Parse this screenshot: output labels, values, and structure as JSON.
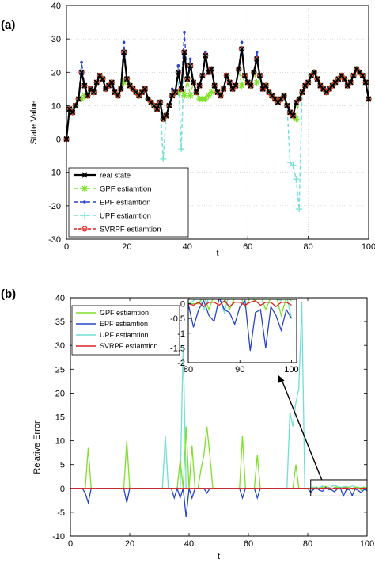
{
  "chart_data": [
    {
      "type": "line",
      "panel_label": "(a)",
      "xlabel": "t",
      "ylabel": "State Value",
      "xlim": [
        0,
        100
      ],
      "ylim": [
        -30,
        40
      ],
      "xticks": [
        "0",
        "20",
        "40",
        "60",
        "80",
        "100"
      ],
      "yticks": [
        "-30",
        "-20",
        "-10",
        "0",
        "10",
        "20",
        "30",
        "40"
      ],
      "grid": true,
      "legend_position": "bottom-left",
      "legend": [
        "real state",
        "GPF estiamtion",
        "EPF estiamtion",
        "UPF estiamtion",
        "SVRPF estiamtion"
      ],
      "colors": {
        "real": "#000000",
        "gpf": "#7fe02a",
        "epf": "#2545c8",
        "upf": "#6ee0d4",
        "svrpf": "#e02020"
      },
      "x": [
        0,
        1,
        2,
        3,
        4,
        5,
        6,
        7,
        8,
        9,
        10,
        11,
        12,
        13,
        14,
        15,
        16,
        17,
        18,
        19,
        20,
        21,
        22,
        23,
        24,
        25,
        26,
        27,
        28,
        29,
        30,
        31,
        32,
        33,
        34,
        35,
        36,
        37,
        38,
        39,
        40,
        41,
        42,
        43,
        44,
        45,
        46,
        47,
        48,
        49,
        50,
        51,
        52,
        53,
        54,
        55,
        56,
        57,
        58,
        59,
        60,
        61,
        62,
        63,
        64,
        65,
        66,
        67,
        68,
        69,
        70,
        71,
        72,
        73,
        74,
        75,
        76,
        77,
        78,
        79,
        80,
        81,
        82,
        83,
        84,
        85,
        86,
        87,
        88,
        89,
        90,
        91,
        92,
        93,
        94,
        95,
        96,
        97,
        98,
        99,
        100
      ],
      "series": [
        {
          "key": "real",
          "values": [
            0,
            9,
            8,
            10,
            12,
            20,
            16,
            13,
            15,
            14,
            17,
            19,
            18,
            15,
            16,
            17,
            14,
            13,
            15,
            26,
            18,
            16,
            15,
            14,
            13,
            14,
            15,
            12,
            11,
            10,
            9,
            11,
            6,
            7,
            10,
            13,
            14,
            20,
            15,
            26,
            18,
            22,
            17,
            14,
            16,
            19,
            25,
            20,
            21,
            16,
            14,
            13,
            15,
            19,
            17,
            15,
            16,
            21,
            27,
            19,
            17,
            16,
            20,
            24,
            19,
            15,
            16,
            14,
            13,
            12,
            11,
            12,
            13,
            10,
            8,
            7,
            11,
            12,
            14,
            16,
            17,
            19,
            20,
            18,
            16,
            15,
            14,
            15,
            16,
            17,
            18,
            19,
            18,
            16,
            17,
            19,
            21,
            20,
            19,
            17,
            12
          ]
        },
        {
          "key": "gpf",
          "values": [
            0,
            9,
            8,
            10,
            12,
            12,
            13,
            13,
            15,
            14,
            17,
            19,
            18,
            15,
            16,
            17,
            14,
            13,
            15,
            17,
            18,
            16,
            15,
            14,
            13,
            14,
            15,
            12,
            11,
            10,
            9,
            11,
            6,
            7,
            10,
            13,
            14,
            14,
            15,
            13,
            18,
            13,
            17,
            14,
            12,
            12,
            12,
            13,
            14,
            16,
            14,
            13,
            15,
            19,
            17,
            15,
            16,
            21,
            16,
            19,
            17,
            16,
            20,
            17,
            19,
            15,
            16,
            14,
            13,
            12,
            11,
            12,
            13,
            10,
            8,
            7,
            6,
            12,
            14,
            16,
            17,
            19,
            20,
            18,
            16,
            15,
            14,
            15,
            16,
            17,
            18,
            19,
            18,
            16,
            17,
            19,
            21,
            20,
            19,
            17,
            12
          ]
        },
        {
          "key": "epf",
          "values": [
            0,
            9,
            8,
            10,
            12,
            23,
            16,
            13,
            15,
            14,
            17,
            19,
            18,
            15,
            16,
            17,
            14,
            13,
            15,
            29,
            18,
            16,
            15,
            14,
            13,
            14,
            15,
            12,
            11,
            10,
            9,
            11,
            6,
            7,
            10,
            15,
            14,
            22,
            15,
            32,
            18,
            24,
            17,
            14,
            16,
            19,
            26,
            20,
            21,
            16,
            14,
            13,
            15,
            19,
            17,
            15,
            16,
            21,
            29,
            19,
            17,
            16,
            20,
            26,
            19,
            15,
            16,
            14,
            13,
            12,
            11,
            12,
            13,
            10,
            8,
            7,
            11,
            12,
            14,
            16,
            17,
            19,
            20,
            18,
            16,
            15,
            14,
            15,
            16,
            17,
            18,
            19,
            18,
            16,
            17,
            19,
            21,
            20,
            19,
            17,
            12
          ]
        },
        {
          "key": "upf",
          "values": [
            0,
            9,
            8,
            10,
            12,
            20,
            16,
            13,
            15,
            14,
            17,
            19,
            18,
            15,
            16,
            17,
            14,
            13,
            15,
            26,
            18,
            16,
            15,
            14,
            13,
            14,
            15,
            12,
            11,
            10,
            9,
            11,
            -6,
            7,
            10,
            13,
            14,
            20,
            -3,
            26,
            18,
            22,
            17,
            14,
            16,
            19,
            25,
            20,
            21,
            16,
            14,
            13,
            15,
            19,
            17,
            15,
            16,
            21,
            27,
            19,
            17,
            16,
            20,
            24,
            19,
            15,
            16,
            14,
            13,
            12,
            11,
            12,
            13,
            10,
            -7,
            -8,
            -12,
            -21,
            14,
            16,
            17,
            19,
            20,
            18,
            16,
            15,
            14,
            15,
            16,
            17,
            18,
            19,
            18,
            16,
            17,
            19,
            21,
            20,
            19,
            17,
            12
          ]
        },
        {
          "key": "svrpf",
          "values": [
            0,
            9,
            8,
            10,
            12,
            20,
            16,
            13,
            15,
            14,
            17,
            19,
            18,
            15,
            16,
            17,
            14,
            13,
            15,
            26,
            18,
            16,
            15,
            14,
            13,
            14,
            15,
            12,
            11,
            10,
            9,
            11,
            6,
            7,
            10,
            13,
            14,
            20,
            15,
            26,
            18,
            22,
            17,
            14,
            16,
            19,
            25,
            20,
            21,
            16,
            14,
            13,
            15,
            19,
            17,
            15,
            16,
            21,
            27,
            19,
            17,
            16,
            20,
            24,
            19,
            15,
            16,
            14,
            13,
            12,
            11,
            12,
            13,
            10,
            8,
            7,
            11,
            12,
            14,
            16,
            17,
            19,
            20,
            18,
            16,
            15,
            14,
            15,
            16,
            17,
            18,
            19,
            18,
            16,
            17,
            19,
            21,
            20,
            19,
            17,
            12
          ]
        }
      ]
    },
    {
      "type": "line",
      "panel_label": "(b)",
      "xlabel": "t",
      "ylabel": "Relative Error",
      "xlim": [
        0,
        100
      ],
      "ylim": [
        -10,
        40
      ],
      "xticks": [
        "0",
        "20",
        "40",
        "60",
        "80",
        "100"
      ],
      "yticks": [
        "-10",
        "-5",
        "0",
        "5",
        "10",
        "15",
        "20",
        "25",
        "30",
        "35",
        "40"
      ],
      "grid": false,
      "legend_position": "top-left",
      "legend": [
        "GPF estiamtion",
        "EPF estiamtion",
        "UPF estiamtion",
        "SVRPF estiamtion"
      ],
      "colors": {
        "gpf": "#7fe02a",
        "epf": "#2545c8",
        "upf": "#6ee0d4",
        "svrpf": "#e02020"
      },
      "x": [
        0,
        1,
        2,
        3,
        4,
        5,
        6,
        7,
        8,
        9,
        10,
        11,
        12,
        13,
        14,
        15,
        16,
        17,
        18,
        19,
        20,
        21,
        22,
        23,
        24,
        25,
        26,
        27,
        28,
        29,
        30,
        31,
        32,
        33,
        34,
        35,
        36,
        37,
        38,
        39,
        40,
        41,
        42,
        43,
        44,
        45,
        46,
        47,
        48,
        49,
        50,
        51,
        52,
        53,
        54,
        55,
        56,
        57,
        58,
        59,
        60,
        61,
        62,
        63,
        64,
        65,
        66,
        67,
        68,
        69,
        70,
        71,
        72,
        73,
        74,
        75,
        76,
        77,
        78,
        79,
        80,
        81,
        82,
        83,
        84,
        85,
        86,
        87,
        88,
        89,
        90,
        91,
        92,
        93,
        94,
        95,
        96,
        97,
        98,
        99,
        100
      ],
      "series": [
        {
          "key": "gpf",
          "values": [
            0,
            0,
            0,
            0,
            0,
            0,
            8.5,
            0,
            0,
            0,
            0,
            0,
            0,
            0,
            0,
            0,
            0,
            0,
            0,
            10,
            0,
            0,
            0,
            0,
            0,
            0,
            0,
            0,
            0,
            0,
            0,
            0,
            0,
            0,
            0,
            0,
            0,
            6,
            0,
            13,
            0,
            9,
            0,
            0,
            4,
            7,
            13,
            7,
            0,
            0,
            0,
            0,
            0,
            0,
            0,
            0,
            0,
            0,
            11,
            0,
            0,
            0,
            0,
            7,
            0,
            0,
            0,
            0,
            0,
            0,
            0,
            0,
            0,
            0,
            0,
            0,
            5,
            0,
            0,
            0,
            0,
            0,
            0,
            0.3,
            -0.2,
            0.3,
            0.4,
            0.2,
            -0.2,
            0.2,
            0.3,
            -0.1,
            0.2,
            0.1,
            0.3,
            -0.2,
            0.2,
            0.3,
            -0.4,
            0.2,
            0.1
          ]
        },
        {
          "key": "epf",
          "values": [
            0,
            0,
            0,
            0,
            0,
            -1,
            -3,
            0,
            0,
            0,
            0,
            0,
            0,
            0,
            0,
            0,
            0,
            0,
            0,
            -3,
            0,
            0,
            0,
            0,
            0,
            0,
            0,
            0,
            0,
            0,
            0,
            0,
            0,
            0,
            0,
            -2,
            0,
            -2,
            0,
            -6,
            0,
            -2,
            0,
            0,
            0,
            0,
            -1,
            0,
            0,
            0,
            0,
            0,
            0,
            0,
            0,
            0,
            0,
            0,
            -2,
            0,
            0,
            0,
            0,
            -2,
            0,
            0,
            0,
            0,
            0,
            0,
            0,
            0,
            0,
            0,
            0,
            0,
            0,
            0,
            0,
            0,
            0,
            -0.8,
            -0.2,
            0.1,
            -0.4,
            -0.6,
            0.2,
            -0.2,
            -0.3,
            -0.7,
            -0.1,
            0.1,
            -1.6,
            -0.3,
            -0.2,
            -1.5,
            -0.1,
            -0.4,
            -0.9,
            -0.2,
            -0.5
          ]
        },
        {
          "key": "upf",
          "values": [
            0,
            0,
            0,
            0,
            0,
            0,
            0,
            0,
            0,
            0,
            0,
            0,
            0,
            0,
            0,
            0,
            0,
            0,
            0,
            0,
            0,
            0,
            0,
            0,
            0,
            0,
            0,
            0,
            0,
            0,
            0,
            0,
            11,
            0,
            0,
            0,
            0,
            0,
            30,
            0,
            0,
            0,
            0,
            0,
            0,
            0,
            0,
            0,
            0,
            0,
            0,
            0,
            0,
            0,
            0,
            0,
            0,
            0,
            0,
            0,
            0,
            0,
            0,
            0,
            0,
            0,
            0,
            0,
            0,
            0,
            0,
            0,
            0,
            0,
            16,
            13,
            18,
            21,
            39,
            0,
            0,
            0.1,
            0.3,
            -0.2,
            0.2,
            0.5,
            0.2,
            -0.3,
            0.4,
            0.6,
            0.4,
            0.2,
            0.3,
            0.4,
            0.2,
            0.5,
            0.3,
            0.2,
            0.1,
            0.3,
            -0.5
          ]
        },
        {
          "key": "svrpf",
          "values": [
            0,
            0,
            0,
            0,
            0,
            0,
            0,
            0,
            0,
            0,
            0,
            0,
            0,
            0,
            0,
            0,
            0,
            0,
            0,
            0,
            0,
            0,
            0,
            0,
            0,
            0,
            0,
            0,
            0,
            0,
            0,
            0,
            0,
            0,
            0,
            0,
            0,
            0,
            0,
            0,
            0,
            0,
            0,
            0,
            0,
            0,
            0,
            0,
            0,
            0,
            0,
            0,
            0,
            0,
            0,
            0,
            0,
            0,
            0,
            0,
            0,
            0,
            0,
            0,
            0,
            0,
            0,
            0,
            0,
            0,
            0,
            0,
            0,
            0,
            0,
            0,
            0,
            0,
            0,
            0,
            0,
            -0.05,
            0.05,
            -0.1,
            0.05,
            0.05,
            -0.05,
            0.1,
            -0.1,
            0.05,
            0.05,
            -0.05,
            0.05,
            0.1,
            -0.05,
            0.05,
            0.05,
            -0.1,
            0.05,
            0.05,
            -0.05
          ]
        }
      ],
      "inset": {
        "xlim": [
          80,
          101
        ],
        "ylim": [
          -2,
          0.15
        ],
        "xticks": [
          "80",
          "90",
          "100"
        ],
        "yticks": [
          "0",
          "-0.5",
          "-1",
          "-1.5",
          "-2"
        ]
      }
    }
  ]
}
